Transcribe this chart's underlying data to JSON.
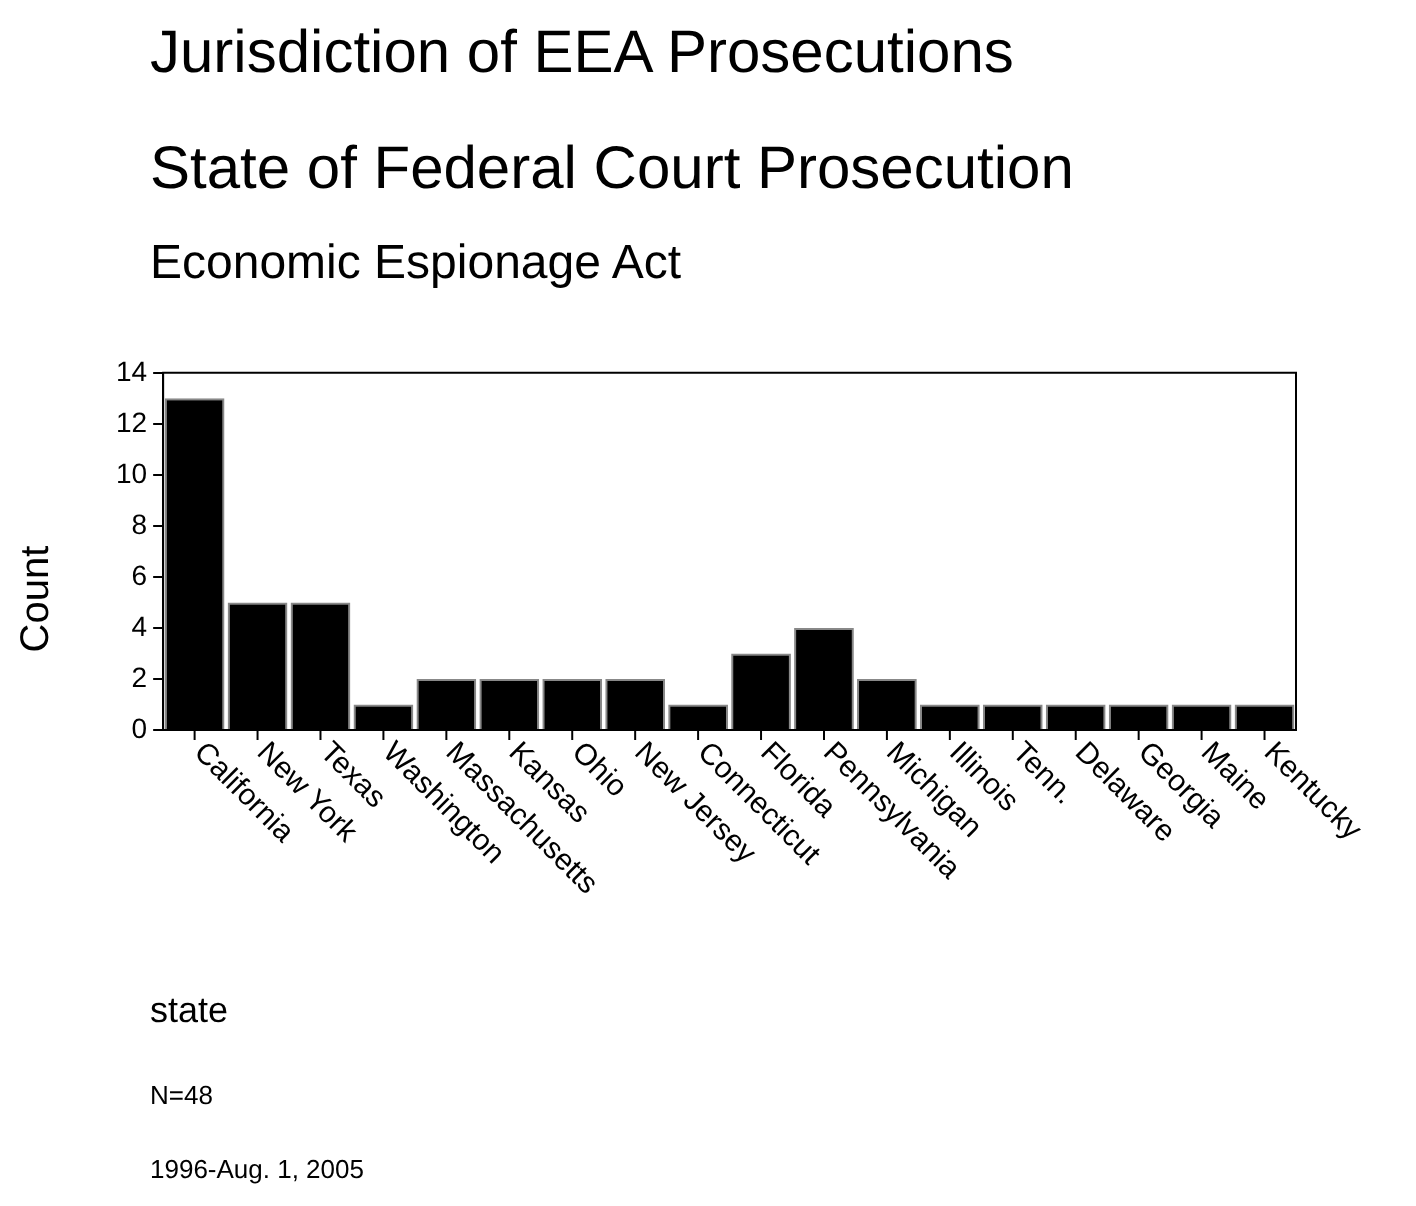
{
  "chart_data": {
    "type": "bar",
    "title": "Jurisdiction of EEA Prosecutions",
    "subtitle": "State of Federal Court Prosecution\nEconomic Espionage Act",
    "xlabel": "state",
    "ylabel": "Count",
    "categories": [
      "California",
      "New York",
      "Texas",
      "Washington",
      "Massachusetts",
      "Kansas",
      "Ohio",
      "New Jersey",
      "Connecticut",
      "Florida",
      "Pennsylvania",
      "Michigan",
      "Illinois",
      "Tenn.",
      "Delaware",
      "Georgia",
      "Maine",
      "Kentucky"
    ],
    "values": [
      13,
      5,
      5,
      1,
      2,
      2,
      2,
      2,
      1,
      3,
      4,
      2,
      1,
      1,
      1,
      1,
      1,
      1
    ],
    "color": "#000000",
    "ylim": [
      0,
      14
    ],
    "yticks": [
      0,
      2,
      4,
      6,
      8,
      10,
      12,
      14
    ],
    "grid": false,
    "legend": false,
    "annotations": [
      "N=48",
      "1996-Aug. 1, 2005"
    ]
  }
}
